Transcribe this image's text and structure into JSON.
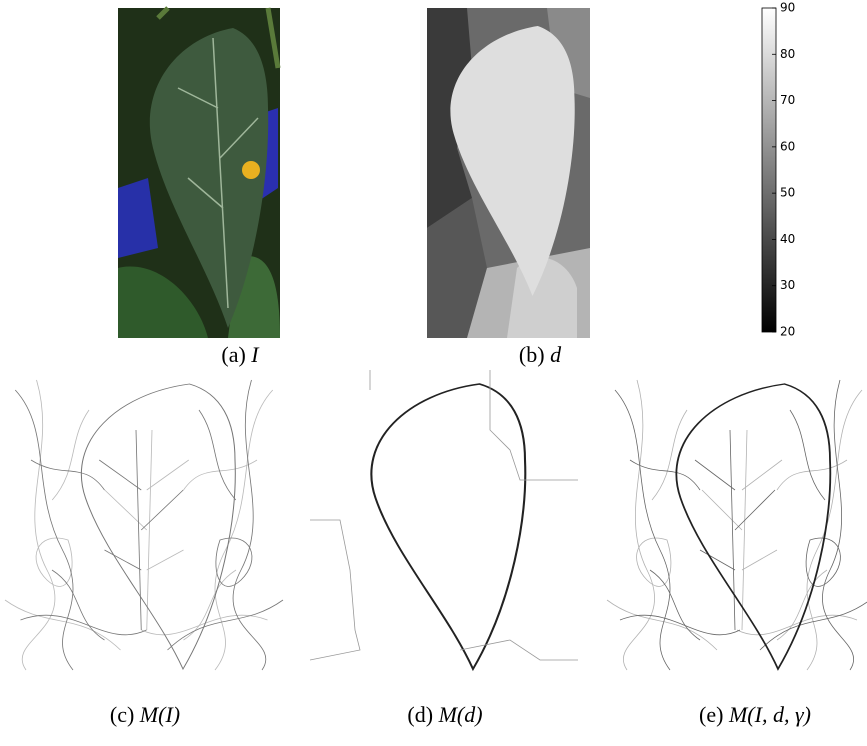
{
  "panels": [
    {
      "tag": "(a)",
      "math": "I"
    },
    {
      "tag": "(b)",
      "math": "d"
    },
    {
      "tag": "(c)",
      "math": "M(I)"
    },
    {
      "tag": "(d)",
      "math": "M(d)"
    },
    {
      "tag": "(e)",
      "math": "M(I, d, γ)"
    }
  ],
  "colorbar": {
    "range": [
      20,
      90
    ],
    "ticks": [
      90,
      80,
      70,
      60,
      50,
      40,
      30,
      20
    ]
  }
}
